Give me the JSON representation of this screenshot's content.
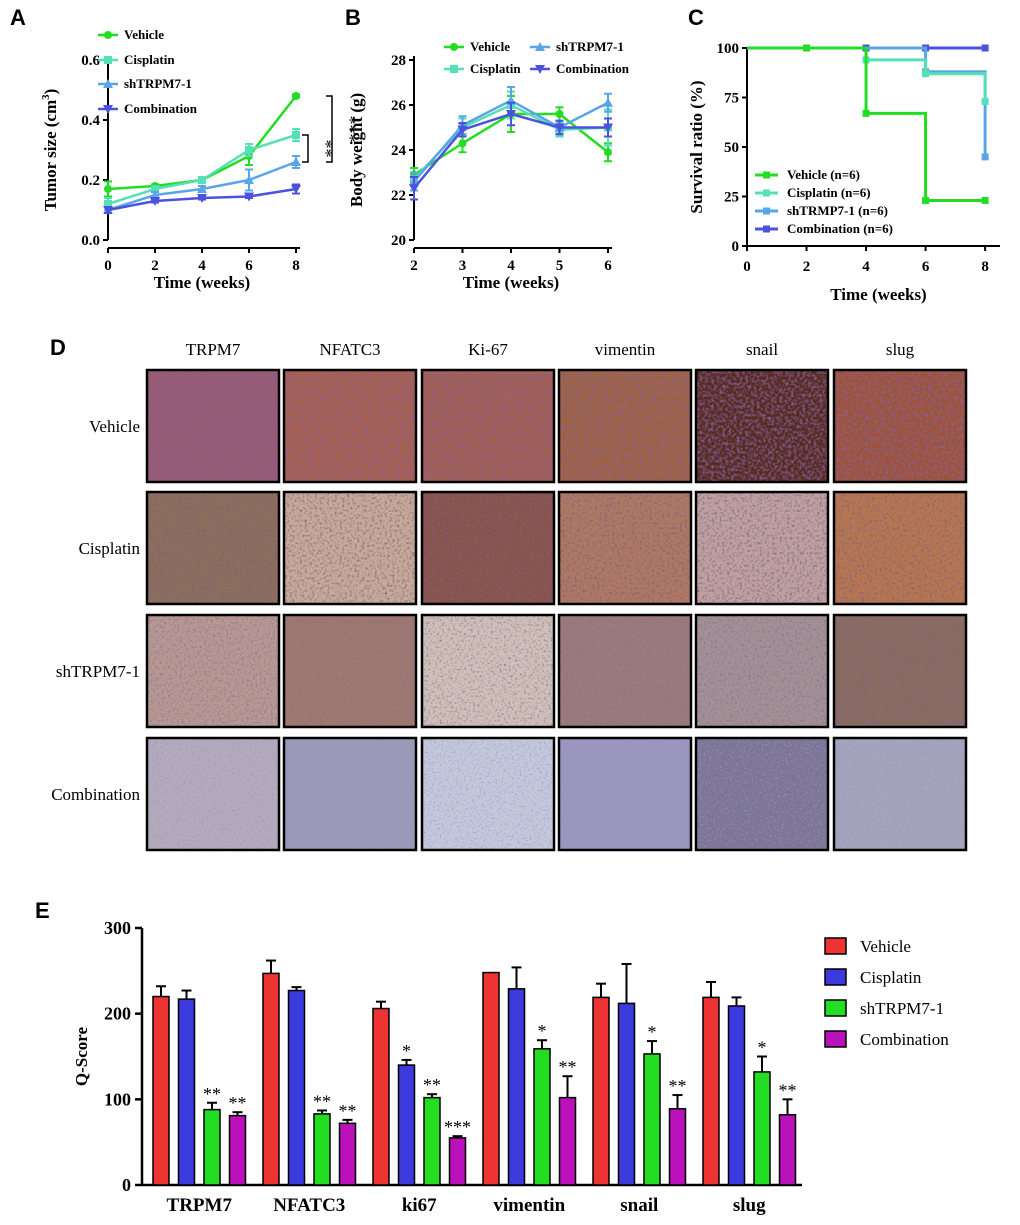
{
  "panels": {
    "A": "A",
    "B": "B",
    "C": "C",
    "D": "D",
    "E": "E"
  },
  "colors": {
    "vehicle": "#22dd22",
    "cisplatin": "#55e0b8",
    "shtrpm7": "#5aa5e8",
    "combination": "#4d52dd",
    "barVehicle": "#ee3333",
    "barCisplatin": "#3b3bdd",
    "barShtrpm7": "#22dd22",
    "barCombination": "#bb11bb"
  },
  "chart_data": [
    {
      "id": "A",
      "type": "line",
      "xlabel": "Time (weeks)",
      "ylabel": "Tumor size (cm",
      "ylabel_sup": "3",
      "ylabel_end": ")",
      "x": [
        0,
        2,
        4,
        6,
        8
      ],
      "xticks": [
        "0",
        "2",
        "4",
        "6",
        "8"
      ],
      "yticks": [
        "0.0",
        "0.2",
        "0.4",
        "0.6"
      ],
      "xlim": [
        0,
        8
      ],
      "ylim": [
        0,
        0.6
      ],
      "legend_placement": "top-left",
      "series": [
        {
          "name": "Vehicle",
          "values": [
            0.17,
            0.18,
            0.2,
            0.28,
            0.48
          ],
          "err": [
            0.025,
            0.005,
            0.01,
            0.03,
            0.005
          ]
        },
        {
          "name": "Cisplatin",
          "values": [
            0.12,
            0.17,
            0.2,
            0.3,
            0.35
          ],
          "err": [
            0.02,
            0.01,
            0.01,
            0.02,
            0.02
          ]
        },
        {
          "name": "shTRPM7-1",
          "values": [
            0.1,
            0.15,
            0.17,
            0.2,
            0.26
          ],
          "err": [
            0.01,
            0.01,
            0.01,
            0.035,
            0.02
          ]
        },
        {
          "name": "Combination",
          "values": [
            0.1,
            0.13,
            0.14,
            0.145,
            0.17
          ],
          "err": [
            0.01,
            0.005,
            0.005,
            0.005,
            0.015
          ]
        }
      ],
      "significance": [
        {
          "label": "**",
          "from": 0.35,
          "to": 0.26
        },
        {
          "label": "***",
          "from": 0.48,
          "to": 0.26
        }
      ]
    },
    {
      "id": "B",
      "type": "line",
      "xlabel": "Time (weeks)",
      "ylabel": "Body weight (g)",
      "x": [
        2,
        3,
        4,
        5,
        6
      ],
      "xticks": [
        "2",
        "3",
        "4",
        "5",
        "6"
      ],
      "yticks": [
        "20",
        "22",
        "24",
        "26",
        "28"
      ],
      "xlim": [
        2,
        6
      ],
      "ylim": [
        20,
        28
      ],
      "legend_placement": "top",
      "series": [
        {
          "name": "Vehicle",
          "values": [
            22.9,
            24.3,
            25.6,
            25.6,
            23.9
          ],
          "err": [
            0.3,
            0.4,
            0.8,
            0.3,
            0.4
          ]
        },
        {
          "name": "Cisplatin",
          "values": [
            22.7,
            25.0,
            26.0,
            24.9,
            25.0
          ],
          "err": [
            0.3,
            0.4,
            0.6,
            0.3,
            0.8
          ]
        },
        {
          "name": "shTRPM7-1",
          "values": [
            22.6,
            25.1,
            26.2,
            25.0,
            26.1
          ],
          "err": [
            0.4,
            0.4,
            0.6,
            0.3,
            0.4
          ]
        },
        {
          "name": "Combination",
          "values": [
            22.3,
            24.9,
            25.6,
            25.0,
            25.0
          ],
          "err": [
            0.5,
            0.3,
            0.5,
            0.3,
            0.4
          ]
        }
      ]
    },
    {
      "id": "C",
      "type": "line",
      "step": true,
      "xlabel": "Time (weeks)",
      "ylabel": "Survival ratio (%)",
      "xticks": [
        "0",
        "2",
        "4",
        "6",
        "8"
      ],
      "yticks": [
        "0",
        "25",
        "50",
        "75",
        "100"
      ],
      "xlim": [
        0,
        8.5
      ],
      "ylim": [
        0,
        100
      ],
      "legend_placement": "bottom-left",
      "series": [
        {
          "name": "Vehicle (n=6)",
          "steps": [
            [
              0,
              100
            ],
            [
              4,
              100
            ],
            [
              4,
              67
            ],
            [
              6,
              67
            ],
            [
              6,
              23
            ],
            [
              8,
              23
            ]
          ],
          "marks": [
            [
              2,
              100
            ],
            [
              4,
              67
            ],
            [
              6,
              23
            ],
            [
              8,
              23
            ]
          ]
        },
        {
          "name": "Cisplatin (n=6)",
          "steps": [
            [
              0,
              100
            ],
            [
              4,
              100
            ],
            [
              4,
              94
            ],
            [
              6,
              94
            ],
            [
              6,
              87
            ],
            [
              8,
              87
            ],
            [
              8,
              73
            ]
          ],
          "marks": [
            [
              4,
              94
            ],
            [
              6,
              87
            ],
            [
              8,
              73
            ]
          ]
        },
        {
          "name": "shTRMP7-1 (n=6)",
          "steps": [
            [
              0,
              100
            ],
            [
              6,
              100
            ],
            [
              6,
              88
            ],
            [
              8,
              88
            ],
            [
              8,
              45
            ]
          ],
          "marks": [
            [
              6,
              88
            ],
            [
              8,
              45
            ]
          ]
        },
        {
          "name": "Combination (n=6)",
          "steps": [
            [
              0,
              100
            ],
            [
              8,
              100
            ]
          ],
          "marks": [
            [
              4,
              100
            ],
            [
              6,
              100
            ],
            [
              8,
              100
            ]
          ]
        }
      ]
    },
    {
      "id": "E",
      "type": "bar",
      "ylabel": "Q-Score",
      "categories": [
        "TRPM7",
        "NFATC3",
        "ki67",
        "vimentin",
        "snail",
        "slug"
      ],
      "yticks": [
        "0",
        "100",
        "200",
        "300"
      ],
      "ylim": [
        0,
        300
      ],
      "legend_placement": "right",
      "series": [
        {
          "name": "Vehicle",
          "values": [
            220,
            247,
            206,
            248,
            219,
            219
          ],
          "err": [
            12,
            15,
            8,
            0,
            16,
            18
          ],
          "sig": [
            "",
            "",
            "",
            "",
            "",
            ""
          ]
        },
        {
          "name": "Cisplatin",
          "values": [
            217,
            227,
            140,
            229,
            212,
            209
          ],
          "err": [
            10,
            4,
            6,
            25,
            46,
            10
          ],
          "sig": [
            "",
            "",
            "*",
            "",
            "",
            ""
          ]
        },
        {
          "name": "shTRPM7-1",
          "values": [
            88,
            83,
            102,
            159,
            153,
            132
          ],
          "err": [
            8,
            4,
            4,
            10,
            15,
            18
          ],
          "sig": [
            "**",
            "**",
            "**",
            "*",
            "*",
            "*"
          ]
        },
        {
          "name": "Combination",
          "values": [
            81,
            72,
            55,
            102,
            89,
            82
          ],
          "err": [
            4,
            4,
            2,
            25,
            16,
            18
          ],
          "sig": [
            "**",
            "**",
            "***",
            "**",
            "**",
            "**"
          ]
        }
      ]
    }
  ],
  "ihc": {
    "markers": [
      "TRPM7",
      "NFATC3",
      "Ki-67",
      "vimentin",
      "snail",
      "slug"
    ],
    "groups": [
      "Vehicle",
      "Cisplatin",
      "shTRPM7-1",
      "Combination"
    ]
  }
}
